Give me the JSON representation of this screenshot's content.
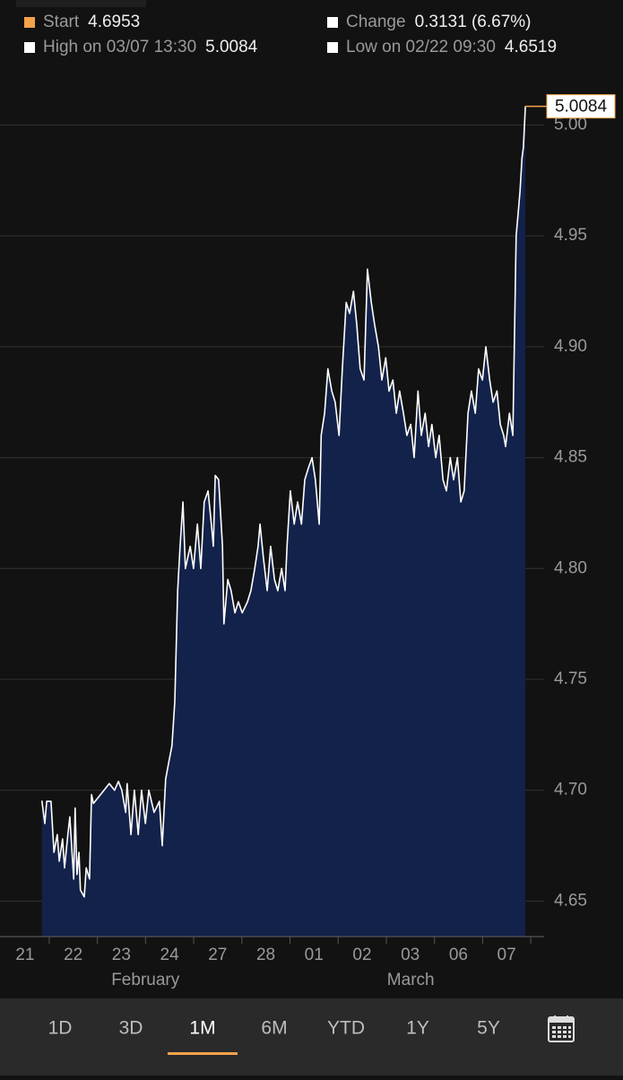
{
  "header": [
    {
      "label": "Start",
      "value": "4.6953",
      "color": "#f5a34a"
    },
    {
      "label": "Change",
      "value": "0.3131 (6.67%)",
      "color": "#ffffff"
    },
    {
      "label": "High on 03/07 13:30",
      "value": "5.0084",
      "color": "#ffffff"
    },
    {
      "label": "Low on 02/22 09:30",
      "value": "4.6519",
      "color": "#ffffff"
    }
  ],
  "chart_data": {
    "type": "area",
    "xlim": [
      -0.52,
      10.78
    ],
    "xticks": [
      {
        "value": 0,
        "label": "21"
      },
      {
        "value": 1,
        "label": "22"
      },
      {
        "value": 2,
        "label": "23"
      },
      {
        "value": 3,
        "label": "24"
      },
      {
        "value": 4,
        "label": "27"
      },
      {
        "value": 5,
        "label": "28"
      },
      {
        "value": 6,
        "label": "01"
      },
      {
        "value": 7,
        "label": "02"
      },
      {
        "value": 8,
        "label": "03"
      },
      {
        "value": 9,
        "label": "06"
      },
      {
        "value": 10,
        "label": "07"
      }
    ],
    "x_groups": [
      {
        "value": 2.5,
        "label": "February"
      },
      {
        "value": 8.01,
        "label": "March"
      }
    ],
    "ylim": [
      4.634,
      5.022
    ],
    "yticks": [
      4.65,
      {
        "value": 4.7,
        "label": "4.70"
      },
      4.75,
      {
        "value": 4.8,
        "label": "4.80"
      },
      4.85,
      {
        "value": 4.9,
        "label": "4.90"
      },
      4.95,
      {
        "value": 5.0,
        "label": "5.00"
      }
    ],
    "grid": true,
    "last_value_color": "#f5a34a",
    "series": [
      {
        "color": "#ffffff",
        "fill": "#13224a",
        "x": [
          0.35,
          0.41,
          0.45,
          0.54,
          0.6,
          0.67,
          0.71,
          0.78,
          0.82,
          0.89,
          0.93,
          1.01,
          1.04,
          1.08,
          1.12,
          1.15,
          1.23,
          1.27,
          1.34,
          1.38,
          1.42,
          1.53,
          1.64,
          1.75,
          1.86,
          1.94,
          2.01,
          2.09,
          2.12,
          2.2,
          2.27,
          2.35,
          2.42,
          2.5,
          2.57,
          2.68,
          2.79,
          2.85,
          2.92,
          2.98,
          3.05,
          3.11,
          3.17,
          3.22,
          3.28,
          3.33,
          3.43,
          3.5,
          3.58,
          3.65,
          3.72,
          3.8,
          3.87,
          3.91,
          3.95,
          4.02,
          4.1,
          4.13,
          4.21,
          4.28,
          4.36,
          4.43,
          4.51,
          4.62,
          4.69,
          4.77,
          4.84,
          4.88,
          4.95,
          5.03,
          5.1,
          5.18,
          5.25,
          5.33,
          5.4,
          5.44,
          5.51,
          5.59,
          5.66,
          5.74,
          5.81,
          5.88,
          5.96,
          6.03,
          6.11,
          6.15,
          6.22,
          6.29,
          6.37,
          6.44,
          6.52,
          6.59,
          6.67,
          6.74,
          6.82,
          6.89,
          6.96,
          7.04,
          7.11,
          7.19,
          7.26,
          7.34,
          7.41,
          7.49,
          7.56,
          7.64,
          7.71,
          7.78,
          7.86,
          7.93,
          8.01,
          8.08,
          8.16,
          8.23,
          8.31,
          8.38,
          8.45,
          8.53,
          8.6,
          8.68,
          8.75,
          8.83,
          8.9,
          8.98,
          9.05,
          9.12,
          9.2,
          9.27,
          9.35,
          9.42,
          9.5,
          9.57,
          9.65,
          9.72,
          9.8,
          9.87,
          9.94,
          9.98,
          10.06,
          10.13,
          10.2,
          10.24,
          10.28,
          10.32,
          10.35,
          10.39
        ],
        "values": [
          4.6953,
          4.685,
          4.695,
          4.695,
          4.672,
          4.68,
          4.668,
          4.678,
          4.665,
          4.68,
          4.688,
          4.66,
          4.692,
          4.662,
          4.672,
          4.655,
          4.6519,
          4.665,
          4.66,
          4.698,
          4.694,
          4.697,
          4.7,
          4.703,
          4.7,
          4.704,
          4.7,
          4.69,
          4.703,
          4.68,
          4.7,
          4.68,
          4.7,
          4.685,
          4.7,
          4.69,
          4.695,
          4.675,
          4.705,
          4.712,
          4.72,
          4.74,
          4.79,
          4.81,
          4.83,
          4.8,
          4.81,
          4.8,
          4.82,
          4.8,
          4.83,
          4.835,
          4.82,
          4.81,
          4.842,
          4.84,
          4.81,
          4.775,
          4.795,
          4.79,
          4.78,
          4.785,
          4.78,
          4.785,
          4.79,
          4.8,
          4.81,
          4.82,
          4.805,
          4.79,
          4.81,
          4.795,
          4.79,
          4.8,
          4.79,
          4.81,
          4.835,
          4.82,
          4.83,
          4.82,
          4.84,
          4.845,
          4.85,
          4.84,
          4.82,
          4.86,
          4.87,
          4.89,
          4.88,
          4.875,
          4.86,
          4.89,
          4.92,
          4.915,
          4.925,
          4.91,
          4.89,
          4.885,
          4.935,
          4.92,
          4.91,
          4.9,
          4.885,
          4.895,
          4.88,
          4.885,
          4.87,
          4.88,
          4.87,
          4.86,
          4.865,
          4.85,
          4.88,
          4.86,
          4.87,
          4.855,
          4.865,
          4.85,
          4.86,
          4.84,
          4.835,
          4.85,
          4.84,
          4.85,
          4.83,
          4.835,
          4.87,
          4.88,
          4.87,
          4.89,
          4.885,
          4.9,
          4.885,
          4.875,
          4.88,
          4.865,
          4.86,
          4.855,
          4.87,
          4.86,
          4.95,
          4.96,
          4.97,
          4.985,
          4.99,
          5.0084
        ]
      }
    ]
  },
  "tabs": [
    "1D",
    "3D",
    "1M",
    "6M",
    "YTD",
    "1Y",
    "5Y"
  ],
  "selected_tab": 2,
  "selected_color": "#f5a34a"
}
